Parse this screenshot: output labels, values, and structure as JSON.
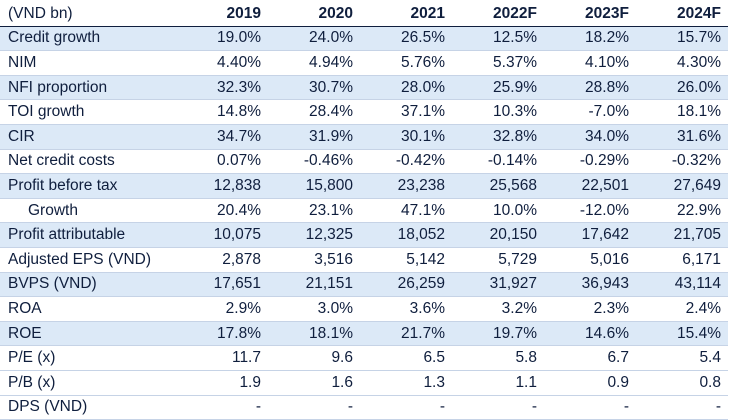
{
  "table": {
    "corner_label": "(VND bn)",
    "years": [
      "2019",
      "2020",
      "2021",
      "2022F",
      "2023F",
      "2024F"
    ],
    "rows": [
      {
        "label": "Credit growth",
        "shaded": true,
        "indent": false,
        "values": [
          "19.0%",
          "24.0%",
          "26.5%",
          "12.5%",
          "18.2%",
          "15.7%"
        ]
      },
      {
        "label": "NIM",
        "shaded": false,
        "indent": false,
        "values": [
          "4.40%",
          "4.94%",
          "5.76%",
          "5.37%",
          "4.10%",
          "4.30%"
        ]
      },
      {
        "label": "NFI proportion",
        "shaded": true,
        "indent": false,
        "values": [
          "32.3%",
          "30.7%",
          "28.0%",
          "25.9%",
          "28.8%",
          "26.0%"
        ]
      },
      {
        "label": "TOI growth",
        "shaded": false,
        "indent": false,
        "values": [
          "14.8%",
          "28.4%",
          "37.1%",
          "10.3%",
          "-7.0%",
          "18.1%"
        ]
      },
      {
        "label": "CIR",
        "shaded": true,
        "indent": false,
        "values": [
          "34.7%",
          "31.9%",
          "30.1%",
          "32.8%",
          "34.0%",
          "31.6%"
        ]
      },
      {
        "label": "Net credit costs",
        "shaded": false,
        "indent": false,
        "values": [
          "0.07%",
          "-0.46%",
          "-0.42%",
          "-0.14%",
          "-0.29%",
          "-0.32%"
        ]
      },
      {
        "label": "Profit before tax",
        "shaded": true,
        "indent": false,
        "values": [
          "12,838",
          "15,800",
          "23,238",
          "25,568",
          "22,501",
          "27,649"
        ]
      },
      {
        "label": "Growth",
        "shaded": false,
        "indent": true,
        "values": [
          "20.4%",
          "23.1%",
          "47.1%",
          "10.0%",
          "-12.0%",
          "22.9%"
        ]
      },
      {
        "label": "Profit attributable",
        "shaded": true,
        "indent": false,
        "values": [
          "10,075",
          "12,325",
          "18,052",
          "20,150",
          "17,642",
          "21,705"
        ]
      },
      {
        "label": "Adjusted EPS (VND)",
        "shaded": false,
        "indent": false,
        "values": [
          "2,878",
          "3,516",
          "5,142",
          "5,729",
          "5,016",
          "6,171"
        ]
      },
      {
        "label": "BVPS (VND)",
        "shaded": true,
        "indent": false,
        "values": [
          "17,651",
          "21,151",
          "26,259",
          "31,927",
          "36,943",
          "43,114"
        ]
      },
      {
        "label": "ROA",
        "shaded": false,
        "indent": false,
        "values": [
          "2.9%",
          "3.0%",
          "3.6%",
          "3.2%",
          "2.3%",
          "2.4%"
        ]
      },
      {
        "label": "ROE",
        "shaded": true,
        "indent": false,
        "values": [
          "17.8%",
          "18.1%",
          "21.7%",
          "19.7%",
          "14.6%",
          "15.4%"
        ]
      },
      {
        "label": "P/E (x)",
        "shaded": false,
        "indent": false,
        "values": [
          "11.7",
          "9.6",
          "6.5",
          "5.8",
          "6.7",
          "5.4"
        ]
      },
      {
        "label": "P/B (x)",
        "shaded": false,
        "indent": false,
        "values": [
          "1.9",
          "1.6",
          "1.3",
          "1.1",
          "0.9",
          "0.8"
        ]
      },
      {
        "label": "DPS (VND)",
        "shaded": false,
        "indent": false,
        "values": [
          "-",
          "-",
          "-",
          "-",
          "-",
          "-"
        ]
      }
    ]
  },
  "colors": {
    "text": "#0f1e3d",
    "shaded_row": "#dce9f7",
    "row_rule": "#c6d3e6"
  }
}
